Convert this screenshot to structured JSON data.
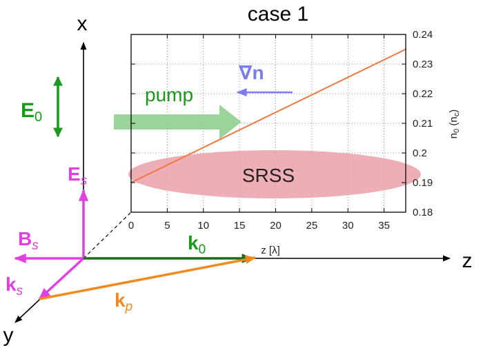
{
  "colors": {
    "axis": "#000000",
    "green": "#1a9a1a",
    "dark_green": "#1e6b1e",
    "magenta": "#e040e0",
    "orange": "#f08a1e",
    "line": "#f07840",
    "gradient_blue": "#7b7bf0",
    "pump_arrow": "#8fcf8f",
    "srss_fill": "#eaa0a8",
    "grid": "#888888"
  },
  "axes3d": {
    "x_label": "x",
    "y_label": "y",
    "z_label": "z"
  },
  "vectors": {
    "E0": {
      "main": "E",
      "sub": "0"
    },
    "Es": {
      "main": "E",
      "sub": "s"
    },
    "Bs": {
      "main": "B",
      "sub": "s"
    },
    "ks": {
      "main": "k",
      "sub": "s"
    },
    "k0": {
      "main": "k",
      "sub": "0"
    },
    "kp": {
      "main": "k",
      "sub": "p"
    }
  },
  "annotations": {
    "pump": "pump",
    "grad_n": "∇n",
    "srss": "SRSS"
  },
  "chart_data": {
    "type": "line",
    "title": "case 1",
    "xlabel": "z [λ]",
    "ylabel_main": "n",
    "ylabel_sub": "0",
    "ylabel_unit_main": " (n",
    "ylabel_unit_sub": "c",
    "ylabel_unit_end": ")",
    "xlim": [
      0,
      38
    ],
    "ylim": [
      0.18,
      0.24
    ],
    "x_ticks": [
      0,
      5,
      10,
      15,
      20,
      25,
      30,
      35
    ],
    "x_tick_labels": [
      "0",
      "5",
      "10",
      "15",
      "20",
      "25",
      "30",
      "35"
    ],
    "y_ticks": [
      0.18,
      0.19,
      0.2,
      0.21,
      0.22,
      0.23,
      0.24
    ],
    "y_tick_labels": [
      "0.18",
      "0.19",
      "0.2",
      "0.21",
      "0.22",
      "0.23",
      "0.24"
    ],
    "y_axis_side": "right",
    "grid": true,
    "series": [
      {
        "x": [
          0,
          38
        ],
        "y": [
          0.19,
          0.235
        ]
      }
    ]
  }
}
